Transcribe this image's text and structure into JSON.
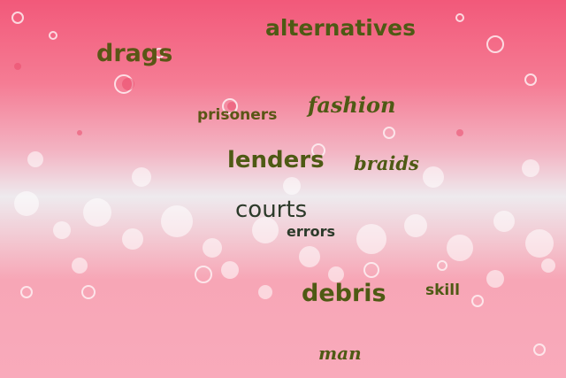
{
  "words": {
    "alternatives": "alternatives",
    "drags": "drags",
    "prisoners": "prisoners",
    "fashion": "fashion",
    "lenders": "lenders",
    "braids": "braids",
    "courts": "courts",
    "errors": "errors",
    "debris": "debris",
    "skill": "skill",
    "man": "man"
  },
  "colors": {
    "background_top": "#f2597a",
    "background_mid": "#eeeaee",
    "background_bottom": "#f9aabb",
    "text_olive": "#4e5a14",
    "text_dark": "#2c3a2a"
  }
}
